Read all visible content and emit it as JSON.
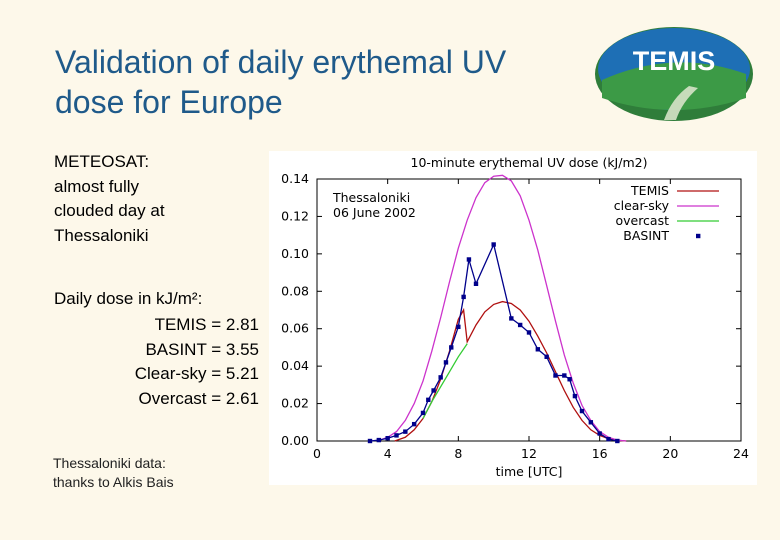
{
  "slide": {
    "title_line1": "Validation of daily erythemal UV",
    "title_line2": "dose for Europe",
    "subtitle_line1": "METEOSAT:",
    "subtitle_line2": "almost fully",
    "subtitle_line3": "clouded day at",
    "subtitle_line4": "Thessaloniki",
    "dose_title": "Daily dose in kJ/m²:",
    "dose_values": [
      "TEMIS = 2.81",
      "BASINT = 3.55",
      "Clear-sky = 5.21",
      "Overcast = 2.61"
    ],
    "credit_line1": "Thessaloniki data:",
    "credit_line2": "thanks to Alkis Bais"
  },
  "logo": {
    "text": "TEMIS"
  },
  "colors": {
    "title": "#1f5a8a",
    "background": "#fdf8ea",
    "temis": "#b01010",
    "clear_sky": "#cc33cc",
    "overcast": "#33cc33",
    "basint": "#00008b"
  },
  "chart_data": {
    "type": "line",
    "title": "10-minute erythemal UV dose (kJ/m2)",
    "xlabel": "time [UTC]",
    "ylabel": "",
    "xlim": [
      0,
      24
    ],
    "ylim": [
      0,
      0.14
    ],
    "xticks": [
      0,
      4,
      8,
      12,
      16,
      20,
      24
    ],
    "yticks": [
      0.0,
      0.02,
      0.04,
      0.06,
      0.08,
      0.1,
      0.12,
      0.14
    ],
    "ytick_labels": [
      "0.00",
      "0.02",
      "0.04",
      "0.06",
      "0.08",
      "0.10",
      "0.12",
      "0.14"
    ],
    "annotation": [
      "Thessaloniki",
      "06 June 2002"
    ],
    "legend_position": "top-right",
    "series": [
      {
        "name": "TEMIS",
        "label_color": "#b01010",
        "color": "#b01010",
        "style": "line",
        "x": [
          4.4,
          5.0,
          5.5,
          6.0,
          6.5,
          7.0,
          7.5,
          8.0,
          8.3,
          8.5,
          9.0,
          9.5,
          10.0,
          10.5,
          11.0,
          11.5,
          12.0,
          12.5,
          13.0,
          13.5,
          14.0,
          14.5,
          15.0,
          15.5,
          16.0,
          16.5,
          17.0,
          17.5
        ],
        "y": [
          0.0,
          0.002,
          0.006,
          0.012,
          0.021,
          0.033,
          0.048,
          0.065,
          0.07,
          0.053,
          0.062,
          0.069,
          0.073,
          0.0745,
          0.0735,
          0.07,
          0.064,
          0.056,
          0.047,
          0.037,
          0.027,
          0.018,
          0.011,
          0.006,
          0.003,
          0.0012,
          0.0004,
          0.0
        ]
      },
      {
        "name": "clear-sky",
        "label_color": "#cc33cc",
        "color": "#cc33cc",
        "style": "line",
        "x": [
          3.4,
          4.0,
          4.5,
          5.0,
          5.5,
          6.0,
          6.5,
          7.0,
          7.5,
          8.0,
          8.5,
          9.0,
          9.5,
          10.0,
          10.5,
          11.0,
          11.5,
          12.0,
          12.5,
          13.0,
          13.5,
          14.0,
          14.5,
          15.0,
          15.5,
          16.0,
          16.5,
          17.0,
          17.5
        ],
        "y": [
          0.0,
          0.002,
          0.005,
          0.011,
          0.02,
          0.032,
          0.048,
          0.066,
          0.085,
          0.103,
          0.118,
          0.13,
          0.138,
          0.1415,
          0.142,
          0.139,
          0.131,
          0.118,
          0.102,
          0.083,
          0.064,
          0.046,
          0.031,
          0.019,
          0.011,
          0.005,
          0.002,
          0.0005,
          0.0
        ]
      },
      {
        "name": "overcast",
        "label_color": "#33cc33",
        "color": "#33cc33",
        "style": "line",
        "x": [
          6.0,
          6.5,
          7.0,
          7.5,
          8.0,
          8.5
        ],
        "y": [
          0.012,
          0.021,
          0.029,
          0.037,
          0.045,
          0.052
        ]
      },
      {
        "name": "BASINT",
        "label_color": "#00008b",
        "color": "#00008b",
        "style": "line+markers",
        "x": [
          3.0,
          3.5,
          4.0,
          4.5,
          5.0,
          5.5,
          6.0,
          6.3,
          6.6,
          7.0,
          7.3,
          7.6,
          8.0,
          8.3,
          8.6,
          9.0,
          10.0,
          11.0,
          11.5,
          12.0,
          12.5,
          13.0,
          13.5,
          14.0,
          14.3,
          14.6,
          15.0,
          15.5,
          16.0,
          16.5,
          17.0
        ],
        "y": [
          0.0,
          0.0005,
          0.0015,
          0.003,
          0.005,
          0.009,
          0.015,
          0.022,
          0.027,
          0.034,
          0.042,
          0.05,
          0.061,
          0.077,
          0.097,
          0.084,
          0.105,
          0.0655,
          0.062,
          0.058,
          0.049,
          0.045,
          0.035,
          0.035,
          0.033,
          0.024,
          0.016,
          0.01,
          0.004,
          0.001,
          0.0
        ]
      }
    ]
  }
}
